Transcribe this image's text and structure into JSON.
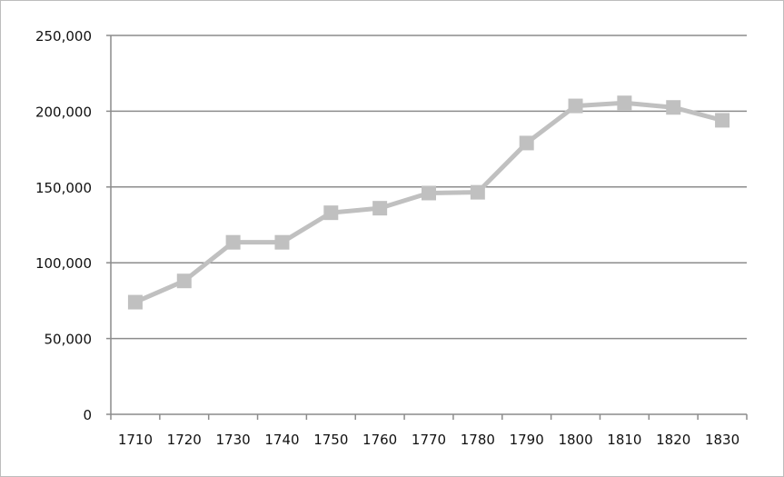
{
  "chart_data": {
    "type": "line",
    "title": "",
    "xlabel": "",
    "ylabel": "",
    "categories": [
      "1710",
      "1720",
      "1730",
      "1740",
      "1750",
      "1760",
      "1770",
      "1780",
      "1790",
      "1800",
      "1810",
      "1820",
      "1830"
    ],
    "values": [
      74000,
      88000,
      113500,
      113500,
      133000,
      136000,
      146000,
      146500,
      179000,
      203500,
      205500,
      202500,
      194000
    ],
    "ylim": [
      0,
      250000
    ],
    "yticks": [
      0,
      50000,
      100000,
      150000,
      200000,
      250000
    ],
    "ytick_labels": [
      "0",
      "50,000",
      "100,000",
      "150,000",
      "200,000",
      "250,000"
    ],
    "grid": "horizontal",
    "legend": "none",
    "marker": "square",
    "colors": {
      "series": "#c0c0c0",
      "grid": "#8c8c8c",
      "axis": "#8c8c8c"
    }
  }
}
